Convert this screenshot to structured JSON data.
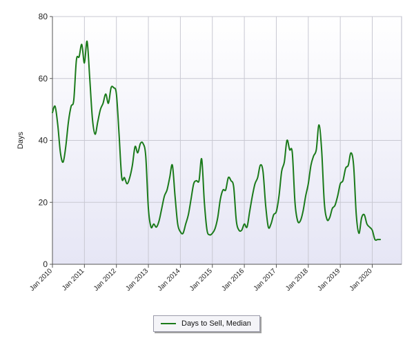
{
  "chart_data": {
    "type": "line",
    "title": "",
    "xlabel": "",
    "ylabel": "Days",
    "ylim": [
      0,
      80
    ],
    "yticks": [
      "0",
      "20",
      "40",
      "60",
      "80"
    ],
    "xlim": [
      "2010-01",
      "2020-12"
    ],
    "xticks": [
      "Jan 2010",
      "Jan 2011",
      "Jan 2012",
      "Jan 2013",
      "Jan 2014",
      "Jan 2015",
      "Jan 2016",
      "Jan 2017",
      "Jan 2018",
      "Jan 2019",
      "Jan 2020"
    ],
    "grid": true,
    "legend_position": "bottom-center",
    "series": [
      {
        "name": "Days to Sell, Median",
        "color": "#1a7a1a",
        "points": [
          [
            "2010-01",
            49
          ],
          [
            "2010-02",
            51
          ],
          [
            "2010-03",
            45
          ],
          [
            "2010-04",
            36
          ],
          [
            "2010-05",
            33
          ],
          [
            "2010-06",
            38
          ],
          [
            "2010-07",
            46
          ],
          [
            "2010-08",
            51
          ],
          [
            "2010-09",
            53
          ],
          [
            "2010-10",
            66
          ],
          [
            "2010-11",
            67
          ],
          [
            "2010-12",
            71
          ],
          [
            "2011-01",
            65
          ],
          [
            "2011-02",
            72
          ],
          [
            "2011-03",
            60
          ],
          [
            "2011-04",
            47
          ],
          [
            "2011-05",
            42
          ],
          [
            "2011-06",
            46
          ],
          [
            "2011-07",
            50
          ],
          [
            "2011-08",
            52
          ],
          [
            "2011-09",
            55
          ],
          [
            "2011-10",
            52
          ],
          [
            "2011-11",
            57
          ],
          [
            "2011-12",
            57
          ],
          [
            "2012-01",
            55
          ],
          [
            "2012-02",
            42
          ],
          [
            "2012-03",
            28
          ],
          [
            "2012-04",
            28
          ],
          [
            "2012-05",
            26
          ],
          [
            "2012-06",
            28
          ],
          [
            "2012-07",
            32
          ],
          [
            "2012-08",
            38
          ],
          [
            "2012-09",
            36
          ],
          [
            "2012-10",
            39
          ],
          [
            "2012-11",
            39
          ],
          [
            "2012-12",
            35
          ],
          [
            "2013-01",
            18
          ],
          [
            "2013-02",
            12
          ],
          [
            "2013-03",
            13
          ],
          [
            "2013-04",
            12
          ],
          [
            "2013-05",
            14
          ],
          [
            "2013-06",
            18
          ],
          [
            "2013-07",
            22
          ],
          [
            "2013-08",
            24
          ],
          [
            "2013-09",
            28
          ],
          [
            "2013-10",
            32
          ],
          [
            "2013-11",
            22
          ],
          [
            "2013-12",
            13
          ],
          [
            "2014-01",
            10.5
          ],
          [
            "2014-02",
            10
          ],
          [
            "2014-03",
            13
          ],
          [
            "2014-04",
            16
          ],
          [
            "2014-05",
            21
          ],
          [
            "2014-06",
            26
          ],
          [
            "2014-07",
            27
          ],
          [
            "2014-08",
            27
          ],
          [
            "2014-09",
            34
          ],
          [
            "2014-10",
            20
          ],
          [
            "2014-11",
            11
          ],
          [
            "2014-12",
            9.5
          ],
          [
            "2015-01",
            10
          ],
          [
            "2015-02",
            11.5
          ],
          [
            "2015-03",
            15
          ],
          [
            "2015-04",
            21
          ],
          [
            "2015-05",
            24
          ],
          [
            "2015-06",
            24
          ],
          [
            "2015-07",
            28
          ],
          [
            "2015-08",
            27
          ],
          [
            "2015-09",
            25
          ],
          [
            "2015-10",
            14
          ],
          [
            "2015-11",
            11
          ],
          [
            "2015-12",
            11
          ],
          [
            "2016-01",
            13
          ],
          [
            "2016-02",
            12
          ],
          [
            "2016-03",
            17
          ],
          [
            "2016-04",
            22
          ],
          [
            "2016-05",
            26
          ],
          [
            "2016-06",
            28
          ],
          [
            "2016-07",
            32
          ],
          [
            "2016-08",
            30
          ],
          [
            "2016-09",
            19
          ],
          [
            "2016-10",
            12
          ],
          [
            "2016-11",
            13
          ],
          [
            "2016-12",
            16
          ],
          [
            "2017-01",
            17
          ],
          [
            "2017-02",
            22
          ],
          [
            "2017-03",
            30
          ],
          [
            "2017-04",
            33
          ],
          [
            "2017-05",
            40
          ],
          [
            "2017-06",
            37
          ],
          [
            "2017-07",
            36
          ],
          [
            "2017-08",
            20
          ],
          [
            "2017-09",
            14
          ],
          [
            "2017-10",
            14
          ],
          [
            "2017-11",
            17
          ],
          [
            "2017-12",
            22
          ],
          [
            "2018-01",
            26
          ],
          [
            "2018-02",
            32
          ],
          [
            "2018-03",
            35
          ],
          [
            "2018-04",
            37
          ],
          [
            "2018-05",
            45
          ],
          [
            "2018-06",
            37
          ],
          [
            "2018-07",
            20
          ],
          [
            "2018-08",
            14.5
          ],
          [
            "2018-09",
            15
          ],
          [
            "2018-10",
            18
          ],
          [
            "2018-11",
            19
          ],
          [
            "2018-12",
            22
          ],
          [
            "2019-01",
            26
          ],
          [
            "2019-02",
            27
          ],
          [
            "2019-03",
            31
          ],
          [
            "2019-04",
            32
          ],
          [
            "2019-05",
            36
          ],
          [
            "2019-06",
            32
          ],
          [
            "2019-07",
            16
          ],
          [
            "2019-08",
            10
          ],
          [
            "2019-09",
            15
          ],
          [
            "2019-10",
            16
          ],
          [
            "2019-11",
            13
          ],
          [
            "2019-12",
            12
          ],
          [
            "2020-01",
            11
          ],
          [
            "2020-02",
            8
          ],
          [
            "2020-03",
            8
          ],
          [
            "2020-04",
            8
          ]
        ]
      }
    ]
  },
  "legend": {
    "label": "Days to Sell, Median",
    "color": "#1a7a1a"
  },
  "colors": {
    "plot_bg_top": "#ffffff",
    "plot_bg_bottom": "#e6e6f5",
    "grid": "#c8c8d2",
    "axis": "#555555",
    "line": "#1a7a1a"
  }
}
